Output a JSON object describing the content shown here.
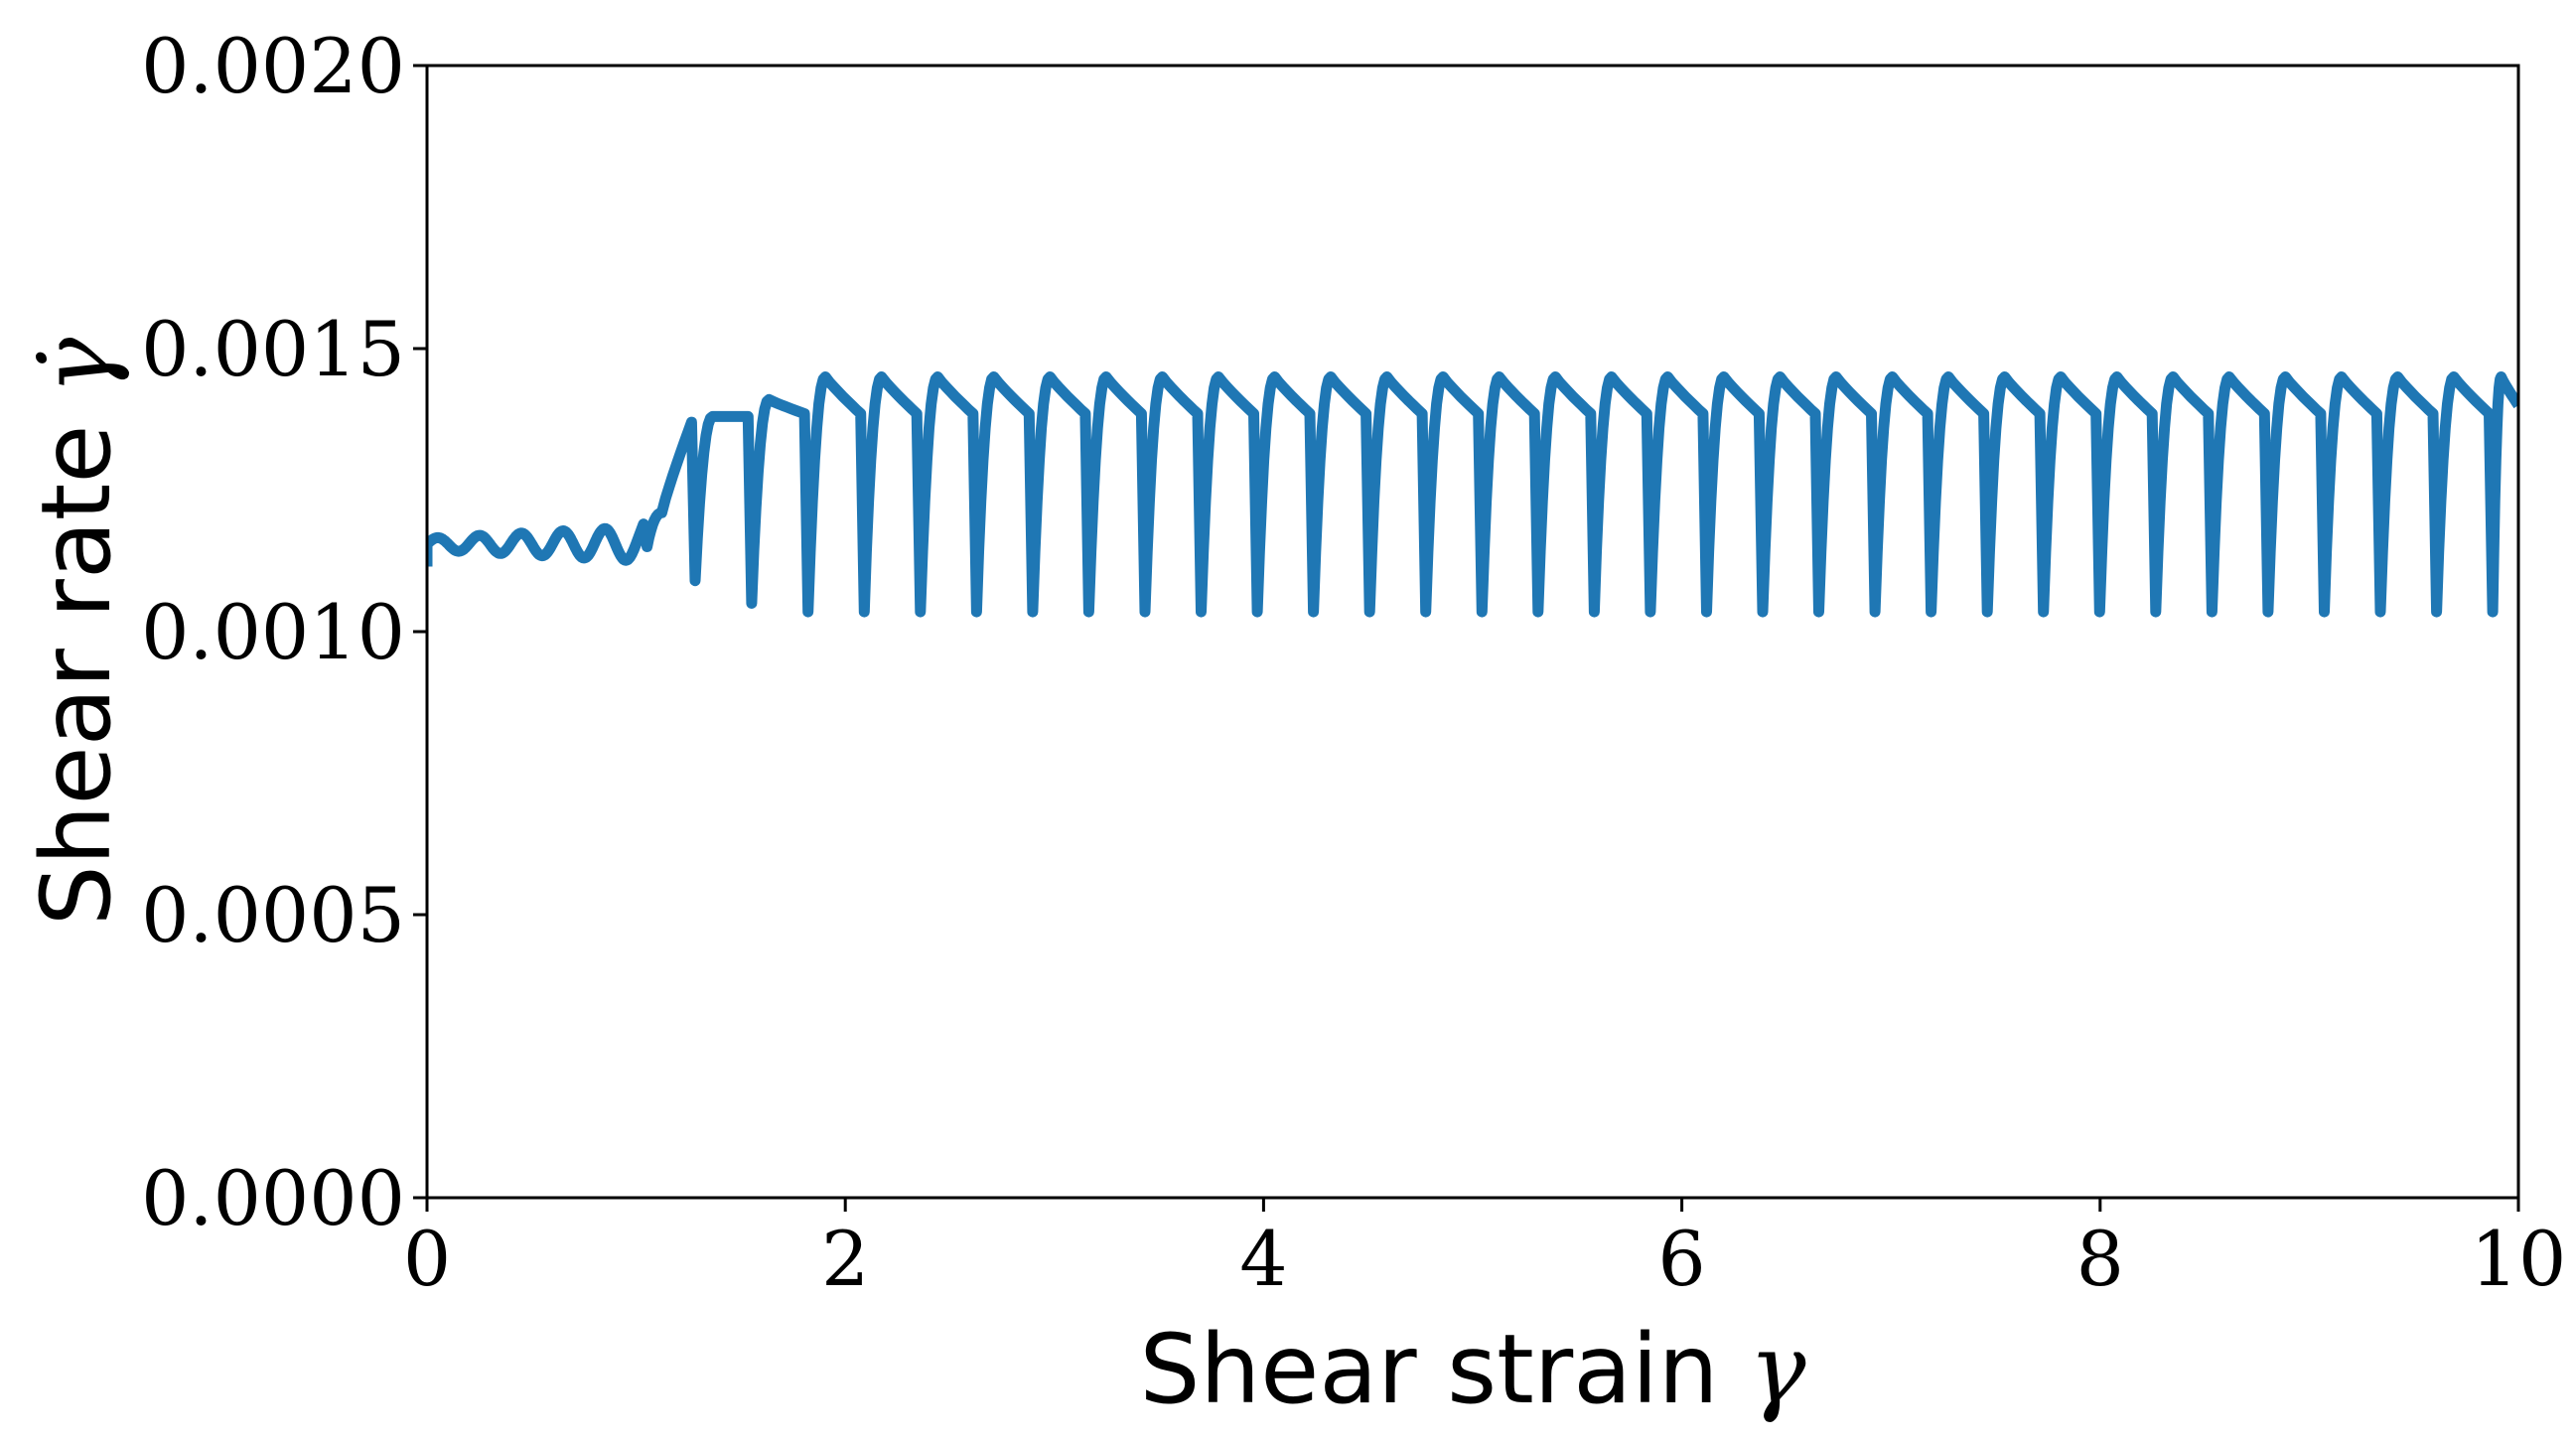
{
  "chart_data": {
    "type": "line",
    "title": "",
    "xlabel": "Shear strain",
    "xlabel_symbol": "γ",
    "ylabel": "Shear rate",
    "ylabel_symbol": "γ̇",
    "xlim": [
      0,
      10
    ],
    "ylim": [
      0,
      0.002
    ],
    "xticks": [
      0,
      2,
      4,
      6,
      8,
      10
    ],
    "xtick_labels": [
      "0",
      "2",
      "4",
      "6",
      "8",
      "10"
    ],
    "yticks": [
      0,
      0.0005,
      0.001,
      0.0015,
      0.002
    ],
    "ytick_labels": [
      "0.0000",
      "0.0005",
      "0.0010",
      "0.0015",
      "0.0020"
    ],
    "grid": false,
    "legend": "none",
    "series": [
      {
        "name": "shear rate",
        "color": "#1f77b4",
        "transient": {
          "x_start": 0.0,
          "x_end": 1.0,
          "baseline": 0.001155,
          "wiggle_period": 0.2,
          "wiggle_amp_start": 1e-05,
          "wiggle_amp_end": 3e-05
        },
        "startup_drops": [
          {
            "x": 1.04,
            "min": 0.00115,
            "peak": 0.00121,
            "pre_drop": 0.00119
          },
          {
            "x": 1.27,
            "min": 0.00109,
            "peak": 0.00138,
            "pre_drop": 0.00137
          },
          {
            "x": 1.54,
            "min": 0.00105,
            "peak": 0.00141,
            "pre_drop": 0.00138
          }
        ],
        "steady_cycle": {
          "period": 0.2685,
          "first_drop_x": 1.81,
          "min": 0.001035,
          "peak": 0.00145,
          "pre_drop": 0.001385,
          "end_value": 0.0014
        }
      }
    ]
  }
}
